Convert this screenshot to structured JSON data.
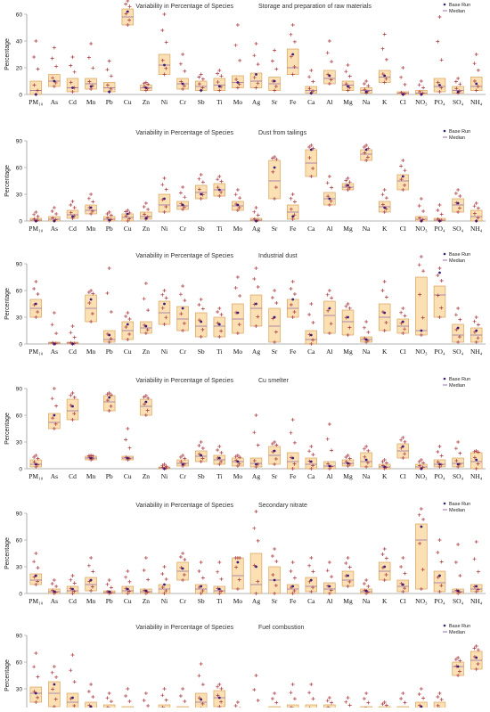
{
  "legend": {
    "base_run": "Base Run",
    "median": "Median"
  },
  "colors": {
    "box_fill": "#fbe0b4",
    "box_stroke": "#d8a25b",
    "plus": "#a8333a",
    "dot": "#3a1a7a",
    "median": "#7a4aa0",
    "axis": "#9a9a9a"
  },
  "chart_data": [
    {
      "type": "box",
      "title": "Variability in Percentage of Species",
      "subtitle": "Storage and preparation of raw materials",
      "ylabel": "Percentage",
      "ylim": [
        0,
        60
      ],
      "yticks": [
        0,
        20,
        40,
        60
      ],
      "categories": [
        "PM₁₀",
        "As",
        "Cd",
        "Mn",
        "Pb",
        "Cu",
        "Zn",
        "Ni",
        "Cr",
        "Sb",
        "Ti",
        "Mo",
        "Ag",
        "Sr",
        "Fe",
        "Ca",
        "Al",
        "Mg",
        "Na",
        "K",
        "Cl",
        "NO₃",
        "PO₄",
        "SO₄",
        "NH₄"
      ],
      "q1": [
        0,
        6,
        2,
        4,
        2,
        52,
        3,
        15,
        4,
        3,
        3,
        5,
        5,
        3,
        15,
        1,
        8,
        3,
        1,
        9,
        0,
        0,
        2,
        1,
        3
      ],
      "q3": [
        10,
        15,
        12,
        12,
        9,
        64,
        7,
        30,
        12,
        10,
        12,
        14,
        16,
        13,
        34,
        6,
        18,
        10,
        5,
        18,
        2,
        3,
        12,
        6,
        13
      ],
      "median": [
        3,
        10,
        5,
        8,
        5,
        58,
        5,
        22,
        8,
        6,
        7,
        9,
        10,
        8,
        20,
        3,
        12,
        7,
        3,
        13,
        1,
        1,
        6,
        3,
        6
      ],
      "base": [
        0,
        10,
        5,
        6,
        2,
        62,
        5,
        22,
        8,
        3,
        6,
        9,
        15,
        10,
        30,
        1,
        14,
        6,
        2,
        14,
        0,
        0,
        7,
        2,
        8
      ],
      "max": [
        40,
        35,
        28,
        38,
        25,
        70,
        9,
        60,
        30,
        15,
        18,
        52,
        38,
        33,
        52,
        18,
        40,
        22,
        10,
        45,
        20,
        10,
        58,
        12,
        30
      ]
    },
    {
      "type": "box",
      "title": "Variability in Percentage of Species",
      "subtitle": "Dust from tailings",
      "ylabel": "Percentage",
      "ylim": [
        0,
        90
      ],
      "yticks": [
        0,
        30,
        60,
        90
      ],
      "categories": [
        "PM₁₀",
        "As",
        "Cd",
        "Mn",
        "Pb",
        "Cu",
        "Zn",
        "Ni",
        "Cr",
        "Sb",
        "Ti",
        "Mo",
        "Ag",
        "Sr",
        "Fe",
        "Ca",
        "Al",
        "Mg",
        "Na",
        "K",
        "Cl",
        "NO₃",
        "PO₄",
        "SO₄",
        "NH₄"
      ],
      "q1": [
        0,
        0,
        3,
        8,
        0,
        0,
        2,
        10,
        13,
        25,
        28,
        12,
        0,
        25,
        2,
        50,
        18,
        35,
        68,
        10,
        35,
        0,
        0,
        10,
        0
      ],
      "q3": [
        3,
        5,
        12,
        18,
        5,
        8,
        10,
        30,
        22,
        40,
        42,
        22,
        3,
        68,
        18,
        80,
        32,
        42,
        80,
        22,
        52,
        5,
        3,
        25,
        12
      ],
      "median": [
        1,
        2,
        7,
        12,
        2,
        4,
        5,
        18,
        17,
        32,
        35,
        17,
        1,
        45,
        10,
        65,
        25,
        38,
        75,
        16,
        45,
        2,
        1,
        18,
        5
      ],
      "base": [
        0,
        0,
        5,
        15,
        1,
        8,
        3,
        25,
        18,
        30,
        35,
        18,
        0,
        60,
        5,
        80,
        25,
        40,
        80,
        15,
        50,
        0,
        0,
        20,
        0
      ],
      "max": [
        10,
        15,
        22,
        30,
        10,
        12,
        20,
        48,
        38,
        52,
        50,
        35,
        15,
        72,
        30,
        85,
        50,
        48,
        85,
        35,
        68,
        25,
        18,
        35,
        20
      ]
    },
    {
      "type": "box",
      "title": "Variability in Percentage of Species",
      "subtitle": "Industrial dust",
      "ylabel": "Percentage",
      "ylim": [
        0,
        90
      ],
      "yticks": [
        0,
        30,
        60,
        90
      ],
      "categories": [
        "PM₁₀",
        "As",
        "Cd",
        "Mn",
        "Pb",
        "Cu",
        "Zn",
        "Ni",
        "Cr",
        "Sb",
        "Ti",
        "Mo",
        "Ag",
        "Sr",
        "Fe",
        "Ca",
        "Al",
        "Mg",
        "Na",
        "K",
        "Cl",
        "NO₃",
        "PO₄",
        "SO₄",
        "NH₄"
      ],
      "q1": [
        30,
        0,
        0,
        25,
        2,
        5,
        12,
        22,
        15,
        8,
        8,
        12,
        20,
        2,
        30,
        0,
        12,
        10,
        2,
        15,
        12,
        10,
        30,
        2,
        2
      ],
      "q3": [
        50,
        2,
        2,
        55,
        15,
        25,
        25,
        48,
        42,
        35,
        30,
        45,
        55,
        40,
        50,
        15,
        48,
        38,
        8,
        45,
        28,
        75,
        65,
        22,
        18
      ],
      "median": [
        40,
        1,
        1,
        40,
        5,
        15,
        18,
        35,
        28,
        20,
        20,
        28,
        40,
        20,
        40,
        5,
        32,
        25,
        5,
        30,
        20,
        15,
        55,
        10,
        10
      ],
      "base": [
        45,
        0,
        0,
        50,
        10,
        22,
        20,
        45,
        40,
        25,
        22,
        35,
        45,
        30,
        50,
        10,
        40,
        30,
        5,
        35,
        25,
        15,
        80,
        18,
        15
      ],
      "max": [
        70,
        35,
        20,
        60,
        85,
        35,
        68,
        60,
        65,
        50,
        40,
        75,
        85,
        60,
        70,
        45,
        60,
        45,
        25,
        70,
        40,
        98,
        85,
        40,
        30
      ]
    },
    {
      "type": "box",
      "title": "Variability in Percentage of Species",
      "subtitle": "Cu smelter",
      "ylabel": "Percentage",
      "ylim": [
        0,
        90
      ],
      "yticks": [
        0,
        30,
        60,
        90
      ],
      "categories": [
        "PM₁₀",
        "As",
        "Cd",
        "Mn",
        "Pb",
        "Cu",
        "Zn",
        "Ni",
        "Cr",
        "Sb",
        "Ti",
        "Mo",
        "Ag",
        "Sr",
        "Fe",
        "Ca",
        "Al",
        "Mg",
        "Na",
        "K",
        "Cl",
        "NO₃",
        "PO₄",
        "SO₄",
        "NH₄"
      ],
      "q1": [
        2,
        45,
        55,
        10,
        65,
        10,
        60,
        0,
        3,
        8,
        5,
        3,
        2,
        5,
        0,
        0,
        0,
        3,
        2,
        0,
        12,
        0,
        2,
        2,
        0
      ],
      "q3": [
        10,
        62,
        78,
        14,
        82,
        14,
        78,
        2,
        10,
        20,
        15,
        12,
        12,
        25,
        18,
        12,
        8,
        10,
        18,
        5,
        28,
        5,
        10,
        12,
        18
      ],
      "median": [
        5,
        52,
        65,
        12,
        75,
        12,
        70,
        1,
        6,
        14,
        10,
        8,
        6,
        15,
        8,
        5,
        3,
        6,
        8,
        2,
        20,
        2,
        5,
        6,
        8
      ],
      "base": [
        5,
        60,
        70,
        12,
        80,
        12,
        75,
        0,
        5,
        15,
        12,
        8,
        5,
        20,
        12,
        8,
        3,
        6,
        10,
        2,
        25,
        0,
        5,
        5,
        10
      ],
      "max": [
        15,
        90,
        85,
        15,
        85,
        45,
        82,
        5,
        15,
        30,
        25,
        15,
        60,
        30,
        55,
        25,
        50,
        15,
        25,
        10,
        35,
        10,
        25,
        30,
        20
      ]
    },
    {
      "type": "box",
      "title": "Variability in Percentage of Species",
      "subtitle": "Secondary nitrate",
      "ylabel": "Percentage",
      "ylim": [
        0,
        90
      ],
      "yticks": [
        0,
        30,
        60,
        90
      ],
      "categories": [
        "PM₁₀",
        "As",
        "Cd",
        "Mn",
        "Pb",
        "Cu",
        "Zn",
        "Ni",
        "Cr",
        "Sb",
        "Ti",
        "Mo",
        "Ag",
        "Sr",
        "Fe",
        "Ca",
        "Al",
        "Mg",
        "Na",
        "K",
        "Cl",
        "NO₃",
        "PO₄",
        "SO₄",
        "NH₄"
      ],
      "q1": [
        10,
        0,
        0,
        3,
        0,
        0,
        0,
        0,
        15,
        0,
        0,
        5,
        0,
        0,
        0,
        2,
        0,
        8,
        0,
        15,
        2,
        5,
        2,
        0,
        2
      ],
      "q3": [
        22,
        5,
        8,
        18,
        3,
        8,
        5,
        10,
        35,
        10,
        8,
        40,
        45,
        30,
        10,
        18,
        12,
        25,
        5,
        35,
        15,
        78,
        25,
        5,
        10
      ],
      "median": [
        15,
        2,
        3,
        10,
        1,
        3,
        2,
        5,
        25,
        5,
        3,
        20,
        10,
        15,
        5,
        8,
        5,
        15,
        2,
        25,
        8,
        60,
        12,
        2,
        5
      ],
      "base": [
        20,
        2,
        5,
        15,
        2,
        5,
        3,
        10,
        28,
        8,
        5,
        35,
        30,
        15,
        8,
        15,
        8,
        20,
        3,
        30,
        10,
        75,
        20,
        3,
        8
      ],
      "max": [
        45,
        15,
        20,
        40,
        15,
        25,
        40,
        30,
        45,
        35,
        35,
        40,
        92,
        50,
        35,
        40,
        35,
        40,
        15,
        50,
        40,
        95,
        60,
        55,
        58
      ]
    },
    {
      "type": "box",
      "title": "Variability in Percentage of Species",
      "subtitle": "Fuel combustion",
      "ylabel": "Percentage",
      "ylim": [
        0,
        90
      ],
      "yticks": [
        0,
        30,
        60,
        90
      ],
      "categories": [
        "PM₁₀",
        "As",
        "Cd",
        "Mn",
        "Pb",
        "Cu",
        "Zn",
        "Ni",
        "Cr",
        "Sb",
        "Ti",
        "Mo",
        "Ag",
        "Sr",
        "Fe",
        "Ca",
        "Al",
        "Mg",
        "Na",
        "K",
        "Cl",
        "NO₃",
        "PO₄",
        "SO₄",
        "NH₄"
      ],
      "q1": [
        15,
        10,
        5,
        3,
        2,
        0,
        0,
        2,
        0,
        8,
        10,
        0,
        0,
        0,
        2,
        0,
        2,
        0,
        2,
        0,
        0,
        3,
        2,
        45,
        52
      ],
      "q3": [
        32,
        38,
        25,
        15,
        12,
        10,
        5,
        12,
        10,
        25,
        28,
        5,
        5,
        10,
        12,
        12,
        12,
        8,
        10,
        10,
        10,
        15,
        15,
        60,
        72
      ],
      "median": [
        25,
        25,
        15,
        8,
        5,
        5,
        2,
        5,
        5,
        15,
        20,
        2,
        2,
        5,
        5,
        5,
        8,
        3,
        5,
        5,
        3,
        8,
        8,
        55,
        62
      ],
      "base": [
        25,
        35,
        20,
        10,
        8,
        5,
        2,
        8,
        5,
        18,
        20,
        2,
        2,
        5,
        8,
        5,
        8,
        5,
        8,
        5,
        5,
        10,
        8,
        55,
        65
      ],
      "max": [
        70,
        55,
        68,
        35,
        25,
        30,
        25,
        30,
        30,
        58,
        35,
        15,
        45,
        25,
        35,
        35,
        20,
        20,
        25,
        15,
        25,
        30,
        25,
        65,
        78
      ]
    }
  ]
}
